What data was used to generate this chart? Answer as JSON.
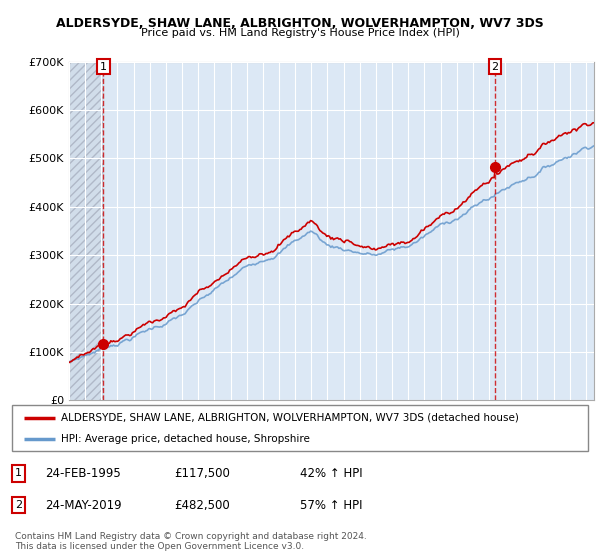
{
  "title": "ALDERSYDE, SHAW LANE, ALBRIGHTON, WOLVERHAMPTON, WV7 3DS",
  "subtitle": "Price paid vs. HM Land Registry's House Price Index (HPI)",
  "legend_line1": "ALDERSYDE, SHAW LANE, ALBRIGHTON, WOLVERHAMPTON, WV7 3DS (detached house)",
  "legend_line2": "HPI: Average price, detached house, Shropshire",
  "sale1_date": "24-FEB-1995",
  "sale1_price": 117500,
  "sale1_pct": "42% ↑ HPI",
  "sale2_date": "24-MAY-2019",
  "sale2_price": 482500,
  "sale2_pct": "57% ↑ HPI",
  "footer": "Contains HM Land Registry data © Crown copyright and database right 2024.\nThis data is licensed under the Open Government Licence v3.0.",
  "hpi_color": "#6699cc",
  "price_color": "#cc0000",
  "chart_bg": "#dce8f5",
  "hatch_color": "#b0b8c8",
  "ylim": [
    0,
    700000
  ],
  "yticks": [
    0,
    100000,
    200000,
    300000,
    400000,
    500000,
    600000,
    700000
  ],
  "ytick_labels": [
    "£0",
    "£100K",
    "£200K",
    "£300K",
    "£400K",
    "£500K",
    "£600K",
    "£700K"
  ],
  "sale1_x": 1995.12,
  "sale2_x": 2019.38,
  "xmin": 1993.0,
  "xmax": 2025.5
}
